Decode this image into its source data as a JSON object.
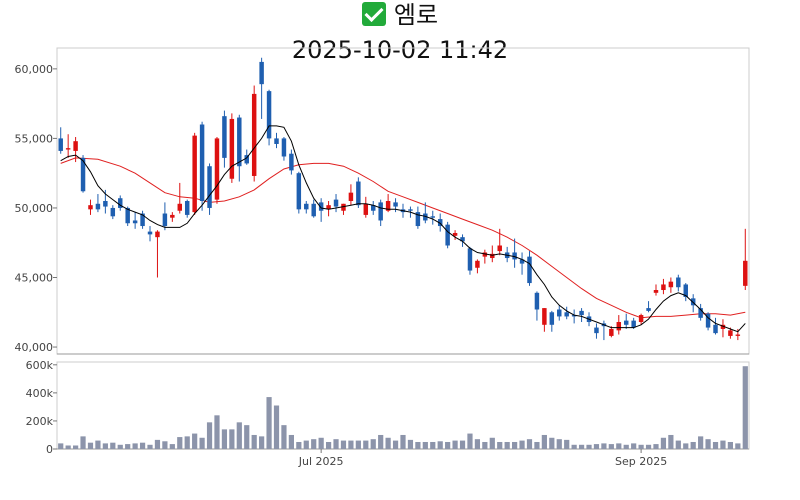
{
  "header": {
    "status_icon": "check-mark-icon",
    "name": "엠로",
    "datetime": "2025-10-02 11:42"
  },
  "colors": {
    "up": "#dd1111",
    "down": "#1f5fb0",
    "ma_short": "#000000",
    "ma_long": "#e02020",
    "volume": "#8c94aa"
  },
  "chart_data": {
    "type": "candlestick",
    "title": "2025-10-02 11:42",
    "price_axis": {
      "ylim": [
        39500,
        61500
      ],
      "ticks": [
        40000,
        45000,
        50000,
        55000,
        60000
      ],
      "tick_labels": [
        "40,000",
        "45,000",
        "50,000",
        "55,000",
        "60,000"
      ]
    },
    "volume_axis": {
      "ylim": [
        0,
        620000
      ],
      "ticks": [
        0,
        200000,
        400000,
        600000
      ],
      "tick_labels": [
        "0",
        "200k",
        "400k",
        "600k"
      ]
    },
    "x_tick_labels": [
      {
        "label": "Jul 2025",
        "index": 35
      },
      {
        "label": "Sep 2025",
        "index": 78
      }
    ],
    "candles": [
      [
        55000,
        55800,
        53900,
        54100
      ],
      [
        54200,
        55300,
        53600,
        54300
      ],
      [
        54100,
        55100,
        53300,
        54800
      ],
      [
        53600,
        53800,
        51100,
        51200
      ],
      [
        49900,
        50600,
        49500,
        50200
      ],
      [
        50300,
        51000,
        49700,
        49900
      ],
      [
        50500,
        51300,
        49600,
        50100
      ],
      [
        50000,
        50200,
        49200,
        49400
      ],
      [
        50700,
        50900,
        49800,
        50000
      ],
      [
        50000,
        50100,
        48700,
        48900
      ],
      [
        49100,
        49700,
        48500,
        48900
      ],
      [
        49600,
        49800,
        48500,
        48700
      ],
      [
        48300,
        48700,
        47600,
        48100
      ],
      [
        47900,
        48400,
        45000,
        48300
      ],
      [
        49600,
        50400,
        48400,
        48700
      ],
      [
        49300,
        49700,
        49000,
        49500
      ],
      [
        49800,
        51800,
        49600,
        50300
      ],
      [
        50500,
        50600,
        49300,
        49500
      ],
      [
        49700,
        55400,
        49500,
        55200
      ],
      [
        56000,
        56200,
        49800,
        50500
      ],
      [
        53000,
        53200,
        49500,
        50000
      ],
      [
        50600,
        55100,
        50300,
        55000
      ],
      [
        56600,
        57000,
        52900,
        53600
      ],
      [
        52100,
        56800,
        51800,
        56400
      ],
      [
        56500,
        56700,
        51900,
        53000
      ],
      [
        53800,
        54200,
        53100,
        53200
      ],
      [
        52300,
        58800,
        51900,
        58200
      ],
      [
        60500,
        60800,
        56400,
        58900
      ],
      [
        58400,
        58500,
        54500,
        55000
      ],
      [
        55000,
        55400,
        54300,
        54600
      ],
      [
        55000,
        55100,
        53400,
        53700
      ],
      [
        53900,
        54200,
        52400,
        52700
      ],
      [
        52500,
        52600,
        49600,
        49900
      ],
      [
        50300,
        50500,
        49600,
        49900
      ],
      [
        50300,
        50600,
        49300,
        49400
      ],
      [
        50400,
        50700,
        49000,
        49800
      ],
      [
        49900,
        50500,
        49400,
        50200
      ],
      [
        50600,
        51000,
        49700,
        50100
      ],
      [
        49800,
        50300,
        49500,
        50300
      ],
      [
        50500,
        51700,
        50200,
        51100
      ],
      [
        51900,
        52200,
        50000,
        50200
      ],
      [
        49500,
        50800,
        49300,
        50300
      ],
      [
        50200,
        50500,
        49500,
        49800
      ],
      [
        50400,
        50600,
        48700,
        49100
      ],
      [
        49800,
        51000,
        49700,
        50500
      ],
      [
        50400,
        50700,
        49700,
        50100
      ],
      [
        49900,
        50300,
        49300,
        49700
      ],
      [
        49900,
        50100,
        49300,
        49800
      ],
      [
        49700,
        50100,
        48500,
        48700
      ],
      [
        49600,
        50400,
        48900,
        49100
      ],
      [
        49400,
        49800,
        48800,
        49300
      ],
      [
        49200,
        49600,
        48300,
        48700
      ],
      [
        48800,
        49000,
        47100,
        47300
      ],
      [
        48000,
        48400,
        47700,
        48200
      ],
      [
        47900,
        48100,
        47200,
        47600
      ],
      [
        47100,
        47200,
        45200,
        45500
      ],
      [
        45700,
        46300,
        45300,
        46200
      ],
      [
        46500,
        47000,
        46000,
        46800
      ],
      [
        46400,
        47300,
        46100,
        46700
      ],
      [
        46900,
        48500,
        46600,
        47300
      ],
      [
        46800,
        47200,
        46100,
        46400
      ],
      [
        46800,
        47800,
        45700,
        46300
      ],
      [
        46300,
        46800,
        45200,
        46000
      ],
      [
        46500,
        46900,
        44400,
        44600
      ],
      [
        43900,
        44000,
        41900,
        42700
      ],
      [
        41600,
        42800,
        41100,
        42800
      ],
      [
        42500,
        42600,
        41100,
        41600
      ],
      [
        42700,
        43000,
        41900,
        42200
      ],
      [
        42500,
        42900,
        42000,
        42200
      ],
      [
        42300,
        42700,
        41700,
        42200
      ],
      [
        42600,
        42800,
        41800,
        42300
      ],
      [
        42200,
        42500,
        41500,
        41800
      ],
      [
        41400,
        41700,
        40600,
        41000
      ],
      [
        41700,
        41900,
        40500,
        41500
      ],
      [
        40800,
        41500,
        40700,
        41300
      ],
      [
        41200,
        42300,
        40900,
        41800
      ],
      [
        41900,
        42400,
        41300,
        41600
      ],
      [
        41900,
        42100,
        41300,
        41400
      ],
      [
        41800,
        42400,
        41600,
        42300
      ],
      [
        42800,
        43300,
        42500,
        42600
      ],
      [
        43900,
        44500,
        43700,
        44100
      ],
      [
        44100,
        44900,
        43800,
        44500
      ],
      [
        44300,
        45000,
        43900,
        44700
      ],
      [
        45000,
        45200,
        44000,
        44300
      ],
      [
        44500,
        44600,
        43300,
        43600
      ],
      [
        43500,
        43800,
        42500,
        43000
      ],
      [
        42800,
        43100,
        41900,
        42100
      ],
      [
        42400,
        42500,
        41200,
        41400
      ],
      [
        41600,
        42100,
        40900,
        41000
      ],
      [
        41300,
        42000,
        40700,
        41600
      ],
      [
        40800,
        41400,
        40600,
        41200
      ],
      [
        40800,
        41300,
        40500,
        40900
      ],
      [
        44400,
        48500,
        44100,
        46200
      ]
    ],
    "ma_short": [
      [
        0,
        53400
      ],
      [
        1,
        53700
      ],
      [
        2,
        53800
      ],
      [
        3,
        53400
      ],
      [
        4,
        52600
      ],
      [
        5,
        51600
      ],
      [
        6,
        51000
      ],
      [
        7,
        50600
      ],
      [
        8,
        50200
      ],
      [
        9,
        49900
      ],
      [
        10,
        49700
      ],
      [
        11,
        49500
      ],
      [
        12,
        49100
      ],
      [
        13,
        48800
      ],
      [
        14,
        48600
      ],
      [
        15,
        48600
      ],
      [
        16,
        48600
      ],
      [
        17,
        48900
      ],
      [
        18,
        49600
      ],
      [
        19,
        50200
      ],
      [
        20,
        50900
      ],
      [
        21,
        51600
      ],
      [
        22,
        52400
      ],
      [
        23,
        53000
      ],
      [
        24,
        53300
      ],
      [
        25,
        53600
      ],
      [
        26,
        54300
      ],
      [
        27,
        55000
      ],
      [
        28,
        55900
      ],
      [
        29,
        55900
      ],
      [
        30,
        55800
      ],
      [
        31,
        54800
      ],
      [
        32,
        53100
      ],
      [
        33,
        51800
      ],
      [
        34,
        50700
      ],
      [
        35,
        50000
      ],
      [
        36,
        49900
      ],
      [
        37,
        50000
      ],
      [
        38,
        50100
      ],
      [
        39,
        50200
      ],
      [
        40,
        50300
      ],
      [
        41,
        50300
      ],
      [
        42,
        50200
      ],
      [
        43,
        50000
      ],
      [
        44,
        49900
      ],
      [
        45,
        49900
      ],
      [
        46,
        49800
      ],
      [
        47,
        49700
      ],
      [
        48,
        49500
      ],
      [
        49,
        49400
      ],
      [
        50,
        49200
      ],
      [
        51,
        48900
      ],
      [
        52,
        48300
      ],
      [
        53,
        47900
      ],
      [
        54,
        47600
      ],
      [
        55,
        47100
      ],
      [
        56,
        46800
      ],
      [
        57,
        46700
      ],
      [
        58,
        46600
      ],
      [
        59,
        46700
      ],
      [
        60,
        46600
      ],
      [
        61,
        46500
      ],
      [
        62,
        46300
      ],
      [
        63,
        46000
      ],
      [
        64,
        45200
      ],
      [
        65,
        44500
      ],
      [
        66,
        43600
      ],
      [
        67,
        43000
      ],
      [
        68,
        42600
      ],
      [
        69,
        42300
      ],
      [
        70,
        42200
      ],
      [
        71,
        42000
      ],
      [
        72,
        41800
      ],
      [
        73,
        41600
      ],
      [
        74,
        41400
      ],
      [
        75,
        41400
      ],
      [
        76,
        41400
      ],
      [
        77,
        41400
      ],
      [
        78,
        41600
      ],
      [
        79,
        42000
      ],
      [
        80,
        42700
      ],
      [
        81,
        43300
      ],
      [
        82,
        43700
      ],
      [
        83,
        43900
      ],
      [
        84,
        43700
      ],
      [
        85,
        43200
      ],
      [
        86,
        42700
      ],
      [
        87,
        42100
      ],
      [
        88,
        41700
      ],
      [
        89,
        41500
      ],
      [
        90,
        41300
      ],
      [
        91,
        41100
      ],
      [
        92,
        41700
      ]
    ],
    "ma_long": [
      [
        0,
        53200
      ],
      [
        2,
        53600
      ],
      [
        5,
        53500
      ],
      [
        8,
        53000
      ],
      [
        10,
        52500
      ],
      [
        12,
        51800
      ],
      [
        14,
        51100
      ],
      [
        16,
        50800
      ],
      [
        18,
        50700
      ],
      [
        20,
        50400
      ],
      [
        22,
        50500
      ],
      [
        24,
        50800
      ],
      [
        26,
        51300
      ],
      [
        28,
        52100
      ],
      [
        30,
        52800
      ],
      [
        32,
        53100
      ],
      [
        34,
        53200
      ],
      [
        36,
        53200
      ],
      [
        38,
        53000
      ],
      [
        40,
        52500
      ],
      [
        42,
        51900
      ],
      [
        44,
        51200
      ],
      [
        46,
        50800
      ],
      [
        48,
        50400
      ],
      [
        50,
        50000
      ],
      [
        52,
        49600
      ],
      [
        54,
        49200
      ],
      [
        56,
        48800
      ],
      [
        58,
        48400
      ],
      [
        60,
        47900
      ],
      [
        62,
        47300
      ],
      [
        64,
        46600
      ],
      [
        66,
        45800
      ],
      [
        68,
        45000
      ],
      [
        70,
        44200
      ],
      [
        72,
        43500
      ],
      [
        74,
        43000
      ],
      [
        76,
        42500
      ],
      [
        78,
        42100
      ],
      [
        80,
        42200
      ],
      [
        82,
        42200
      ],
      [
        84,
        42300
      ],
      [
        86,
        42400
      ],
      [
        88,
        42400
      ],
      [
        90,
        42300
      ],
      [
        92,
        42500
      ]
    ],
    "volume": [
      40000,
      25000,
      25000,
      90000,
      45000,
      60000,
      40000,
      45000,
      30000,
      35000,
      40000,
      45000,
      30000,
      65000,
      55000,
      35000,
      85000,
      90000,
      110000,
      80000,
      190000,
      240000,
      140000,
      140000,
      190000,
      170000,
      100000,
      90000,
      370000,
      310000,
      170000,
      100000,
      50000,
      60000,
      70000,
      80000,
      50000,
      70000,
      60000,
      60000,
      60000,
      60000,
      70000,
      100000,
      80000,
      60000,
      100000,
      65000,
      50000,
      50000,
      50000,
      55000,
      50000,
      60000,
      60000,
      110000,
      70000,
      50000,
      80000,
      50000,
      50000,
      50000,
      60000,
      70000,
      50000,
      100000,
      80000,
      70000,
      65000,
      30000,
      30000,
      30000,
      35000,
      40000,
      35000,
      40000,
      30000,
      40000,
      30000,
      30000,
      35000,
      80000,
      100000,
      60000,
      40000,
      50000,
      90000,
      70000,
      50000,
      60000,
      50000,
      40000,
      590000
    ]
  }
}
